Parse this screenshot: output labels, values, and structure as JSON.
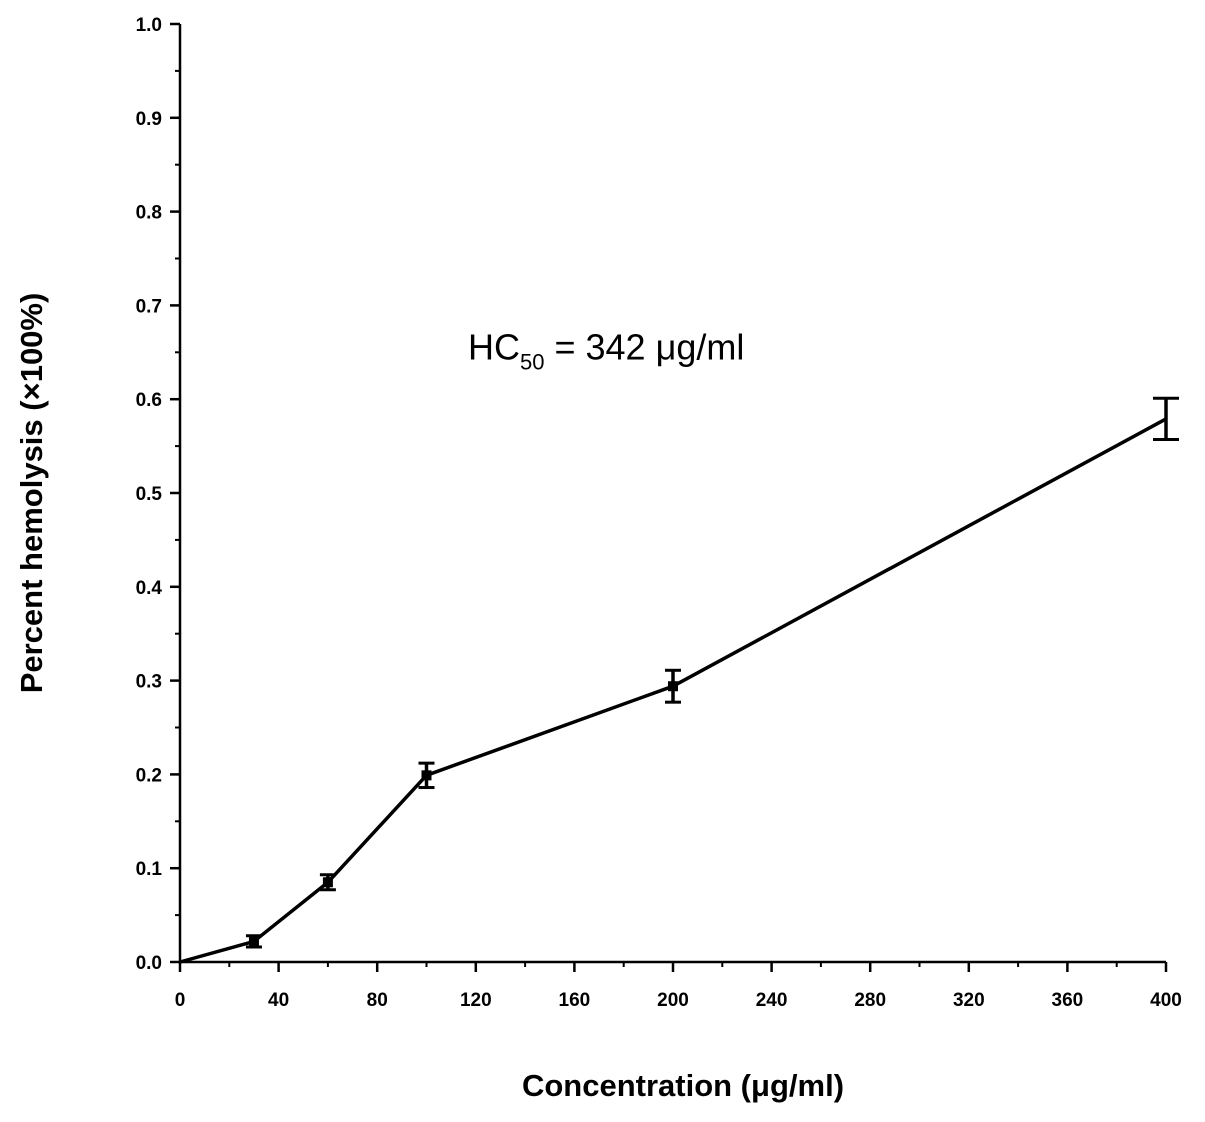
{
  "chart_data": {
    "type": "line",
    "xlabel": "Concentration (μg/ml)",
    "ylabel": "Percent hemolysis (×100%)",
    "xlim": [
      0,
      400
    ],
    "ylim": [
      0,
      1.0
    ],
    "x_ticks": [
      "0",
      "40",
      "80",
      "120",
      "160",
      "200",
      "240",
      "280",
      "320",
      "360",
      "400"
    ],
    "y_ticks": [
      "0.0",
      "0.1",
      "0.2",
      "0.3",
      "0.4",
      "0.5",
      "0.6",
      "0.7",
      "0.8",
      "0.9",
      "1.0"
    ],
    "grid": false,
    "series": [
      {
        "x": [
          0,
          30,
          60,
          100,
          200,
          400
        ],
        "y": [
          0.0,
          0.022,
          0.085,
          0.199,
          0.294,
          0.579
        ],
        "error": [
          0,
          0.006,
          0.008,
          0.013,
          0.017,
          0.022
        ]
      }
    ],
    "annotation": {
      "main": "HC",
      "subscript": "50",
      "rest": " = 342 μg/ml",
      "x": 200,
      "y": 0.655
    }
  }
}
